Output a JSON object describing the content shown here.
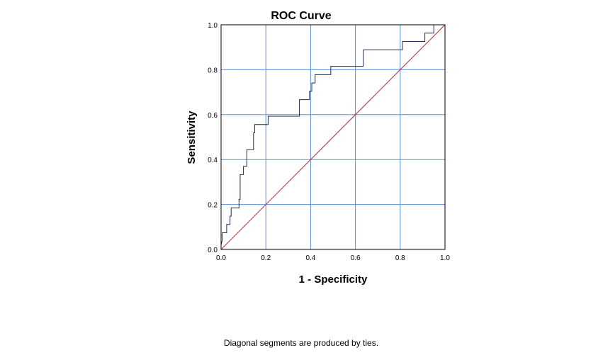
{
  "chart_data": {
    "type": "line",
    "title": "ROC Curve",
    "xlabel": "1 - Specificity",
    "ylabel": "Sensitivity",
    "xlim": [
      0,
      1
    ],
    "ylim": [
      0,
      1
    ],
    "x_ticks": [
      "0.0",
      "0.2",
      "0.4",
      "0.6",
      "0.8",
      "1.0"
    ],
    "y_ticks": [
      "0.0",
      "0.2",
      "0.4",
      "0.6",
      "0.8",
      "1.0"
    ],
    "grid": true,
    "footnote": "Diagonal segments are produced by ties.",
    "colors": {
      "curve": "#1f2d4d",
      "reference": "#c0282d",
      "grid": "#5b8fd6",
      "frame": "#000000"
    },
    "series": [
      {
        "values": [
          [
            0.0,
            0.0
          ],
          [
            0.0,
            0.02
          ],
          [
            0.005,
            0.04
          ],
          [
            0.005,
            0.074
          ],
          [
            0.025,
            0.074
          ],
          [
            0.025,
            0.111
          ],
          [
            0.04,
            0.111
          ],
          [
            0.04,
            0.148
          ],
          [
            0.045,
            0.148
          ],
          [
            0.045,
            0.185
          ],
          [
            0.08,
            0.185
          ],
          [
            0.08,
            0.222
          ],
          [
            0.085,
            0.222
          ],
          [
            0.085,
            0.333
          ],
          [
            0.1,
            0.333
          ],
          [
            0.1,
            0.37
          ],
          [
            0.115,
            0.37
          ],
          [
            0.115,
            0.444
          ],
          [
            0.145,
            0.444
          ],
          [
            0.145,
            0.519
          ],
          [
            0.15,
            0.519
          ],
          [
            0.15,
            0.556
          ],
          [
            0.21,
            0.556
          ],
          [
            0.21,
            0.593
          ],
          [
            0.35,
            0.593
          ],
          [
            0.35,
            0.667
          ],
          [
            0.395,
            0.667
          ],
          [
            0.395,
            0.704
          ],
          [
            0.405,
            0.704
          ],
          [
            0.405,
            0.741
          ],
          [
            0.42,
            0.741
          ],
          [
            0.42,
            0.778
          ],
          [
            0.49,
            0.778
          ],
          [
            0.49,
            0.815
          ],
          [
            0.635,
            0.815
          ],
          [
            0.635,
            0.889
          ],
          [
            0.81,
            0.889
          ],
          [
            0.81,
            0.926
          ],
          [
            0.91,
            0.926
          ],
          [
            0.91,
            0.963
          ],
          [
            0.95,
            0.963
          ],
          [
            0.95,
            1.0
          ],
          [
            1.0,
            1.0
          ]
        ]
      },
      {
        "values": [
          [
            0,
            0
          ],
          [
            1,
            1
          ]
        ]
      }
    ]
  }
}
